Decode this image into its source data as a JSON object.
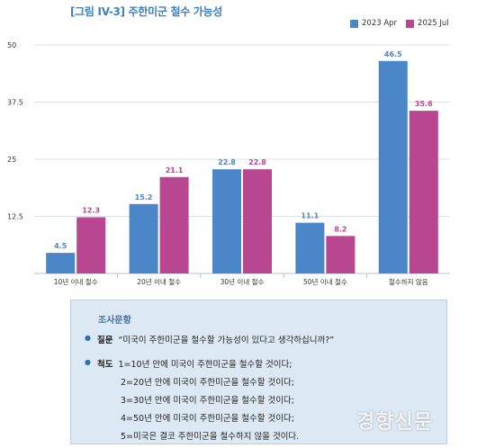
{
  "figure_title": "[그림 IV-3] 주한미군 철수 가능성",
  "colors": {
    "apr": "#4a86c8",
    "jul": "#b94690",
    "grid": "#cfd8e3",
    "axis": "#b7c3cf"
  },
  "chart_data": {
    "type": "bar",
    "categories": [
      "10년 이내 철수",
      "20년 이내 철수",
      "30년 이내 철수",
      "50년 이내 철수",
      "철수하지 않음"
    ],
    "series": [
      {
        "name": "2023 Apr",
        "values": [
          4.5,
          15.2,
          22.8,
          11.1,
          46.5
        ]
      },
      {
        "name": "2025 Jul",
        "values": [
          12.3,
          21.1,
          22.8,
          8.2,
          35.6
        ]
      }
    ],
    "yticks": [
      "12.5",
      "25",
      "37.5",
      "50"
    ],
    "ylim": [
      0,
      50
    ],
    "grid": true,
    "legend": "top-right"
  },
  "survey": {
    "heading": "조사문항",
    "question_label": "질문",
    "question": "“미국이 주한미군을 철수할 가능성이 있다고 생각하십니까?”",
    "scale_label": "척도",
    "scale": [
      "1=10년 안에 미국이 주한미군을 철수할 것이다;",
      "2=20년 안에 미국이 주한미군을 철수할 것이다;",
      "3=30년 안에 미국이 주한미군을 철수할 것이다;",
      "4=50년 안에 미국이 주한미군을 철수할 것이다;",
      "5=미국은 결코 주한미군을 철수하지 않을 것이다."
    ]
  },
  "watermark": "경향신문"
}
